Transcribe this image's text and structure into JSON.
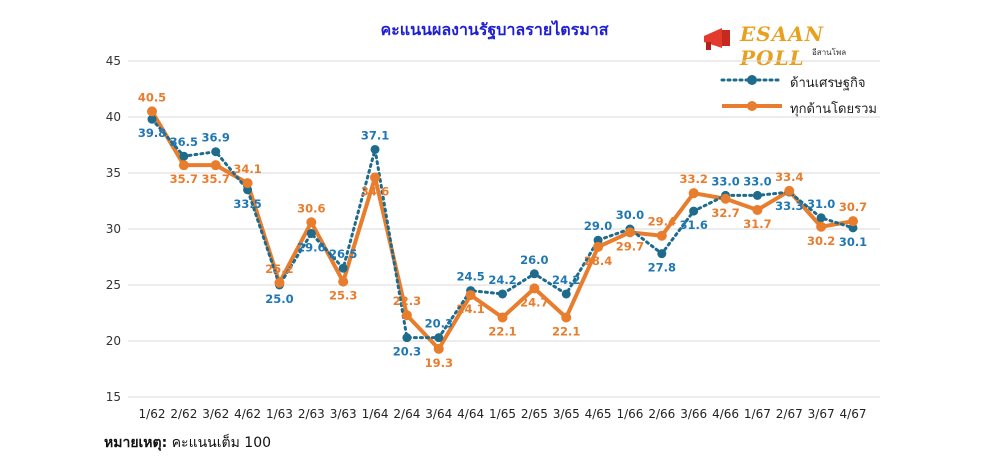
{
  "header": {
    "title": "คะแนนผลงานรัฐบาลรายไตรมาส",
    "logo_text": "ESAAN POLL",
    "logo_sub": "อีสานโพล"
  },
  "footer": {
    "note_label": "หมายเหตุ:",
    "note_text": "คะแนนเต็ม 100"
  },
  "colors": {
    "economy": "#1f6b8c",
    "overall": "#e87d2e",
    "economy_label": "#1f77b4",
    "overall_label": "#e87d2e"
  },
  "chart_data": {
    "type": "line",
    "title": "คะแนนผลงานรัฐบาลรายไตรมาส",
    "ylim": [
      15,
      45
    ],
    "yticks": [
      "15",
      "20",
      "25",
      "30",
      "35",
      "40",
      "45"
    ],
    "grid": true,
    "legend_position": "top-right",
    "categories": [
      "1/62",
      "2/62",
      "3/62",
      "4/62",
      "1/63",
      "2/63",
      "3/63",
      "1/64",
      "2/64",
      "3/64",
      "4/64",
      "1/65",
      "2/65",
      "3/65",
      "4/65",
      "1/66",
      "2/66",
      "3/66",
      "4/66",
      "1/67",
      "2/67",
      "3/67",
      "4/67"
    ],
    "series": [
      {
        "name": "ด้านเศรษฐกิจ",
        "style": "dotted-marker",
        "values": [
          39.8,
          36.5,
          36.9,
          33.5,
          25.0,
          29.6,
          26.5,
          37.1,
          20.3,
          20.3,
          24.5,
          24.2,
          26.0,
          24.2,
          29.0,
          30.0,
          27.8,
          31.6,
          33.0,
          33.0,
          33.3,
          31.0,
          30.1
        ],
        "labels": [
          "39.8",
          "36.5",
          "36.9",
          "33.5",
          "25.0",
          "29.6",
          "26.5",
          "37.1",
          "20.3",
          "20.3",
          "24.5",
          "24.2",
          "26.0",
          "24.2",
          "29.0",
          "30.0",
          "27.8",
          "31.6",
          "33.0",
          "33.0",
          "33.3",
          "31.0",
          "30.1"
        ]
      },
      {
        "name": "ทุกด้านโดยรวม",
        "style": "solid-marker",
        "values": [
          40.5,
          35.7,
          35.7,
          34.1,
          25.2,
          30.6,
          25.3,
          34.6,
          22.3,
          19.3,
          24.1,
          22.1,
          24.7,
          22.1,
          28.4,
          29.7,
          29.4,
          33.2,
          32.7,
          31.7,
          33.4,
          30.2,
          30.7
        ],
        "labels": [
          "40.5",
          "35.7",
          "35.7",
          "34.1",
          "25.2",
          "30.6",
          "25.3",
          "34.6",
          "22.3",
          "19.3",
          "24.1",
          "22.1",
          "24.7",
          "22.1",
          "28.4",
          "29.7",
          "29.4",
          "33.2",
          "32.7",
          "31.7",
          "33.4",
          "30.2",
          "30.7"
        ]
      }
    ]
  }
}
